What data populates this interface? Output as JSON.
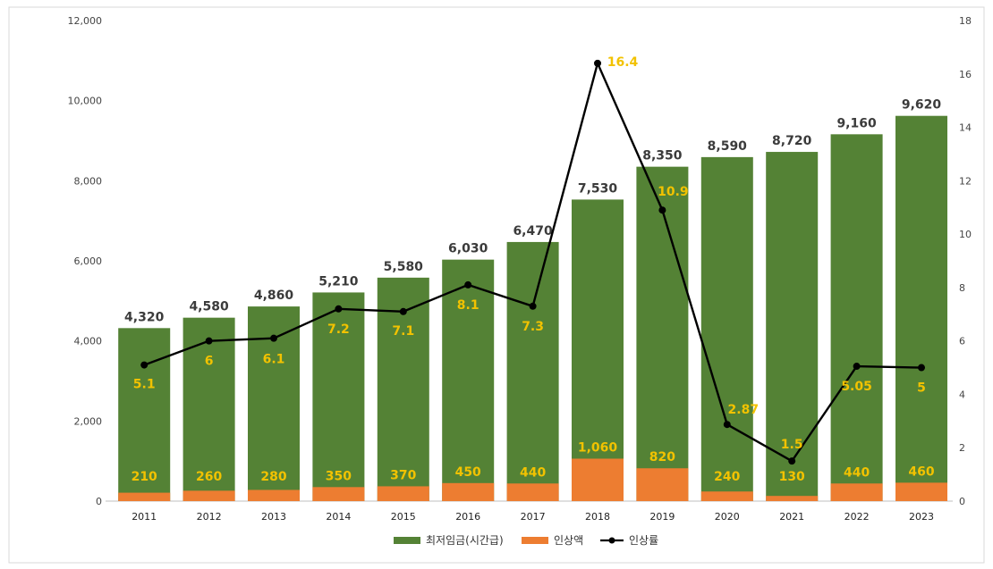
{
  "chart_data": {
    "type": "bar",
    "stacked": true,
    "categories": [
      "2011",
      "2012",
      "2013",
      "2014",
      "2015",
      "2016",
      "2017",
      "2018",
      "2019",
      "2020",
      "2021",
      "2022",
      "2023"
    ],
    "series": [
      {
        "name": "최저임금(시간급)",
        "type": "bar",
        "axis": "left",
        "color": "#548235",
        "values": [
          4320,
          4580,
          4860,
          5210,
          5580,
          6030,
          6470,
          7530,
          8350,
          8590,
          8720,
          9160,
          9620
        ],
        "labels": [
          "4,320",
          "4,580",
          "4,860",
          "5,210",
          "5,580",
          "6,030",
          "6,470",
          "7,530",
          "8,350",
          "8,590",
          "8,720",
          "9,160",
          "9,620"
        ]
      },
      {
        "name": "인상액",
        "type": "bar",
        "axis": "left",
        "color": "#ed7d31",
        "values": [
          210,
          260,
          280,
          350,
          370,
          450,
          440,
          1060,
          820,
          240,
          130,
          440,
          460
        ],
        "labels": [
          "210",
          "260",
          "280",
          "350",
          "370",
          "450",
          "440",
          "1,060",
          "820",
          "240",
          "130",
          "440",
          "460"
        ]
      },
      {
        "name": "인상률",
        "type": "line",
        "axis": "right",
        "color": "#000000",
        "values": [
          5.1,
          6,
          6.1,
          7.2,
          7.1,
          8.1,
          7.3,
          16.4,
          10.9,
          2.87,
          1.5,
          5.05,
          5
        ],
        "labels": [
          "5.1",
          "6",
          "6.1",
          "7.2",
          "7.1",
          "8.1",
          "7.3",
          "16.4",
          "10.9",
          "2.87",
          "1.5",
          "5.05",
          "5"
        ]
      }
    ],
    "y_left": {
      "min": 0,
      "max": 12000,
      "ticks": [
        0,
        2000,
        4000,
        6000,
        8000,
        10000,
        12000
      ],
      "tick_labels": [
        "0",
        "2,000",
        "4,000",
        "6,000",
        "8,000",
        "10,000",
        "12,000"
      ]
    },
    "y_right": {
      "min": 0,
      "max": 18,
      "ticks": [
        0,
        2,
        4,
        6,
        8,
        10,
        12,
        14,
        16,
        18
      ],
      "tick_labels": [
        "0",
        "2",
        "4",
        "6",
        "8",
        "10",
        "12",
        "14",
        "16",
        "18"
      ]
    },
    "legend_position": "bottom-center",
    "grid": false,
    "colors": {
      "green": "#548235",
      "orange": "#ed7d31",
      "line": "#000000",
      "value_label": "#f2c200",
      "total_label": "#3b3b3b"
    }
  }
}
